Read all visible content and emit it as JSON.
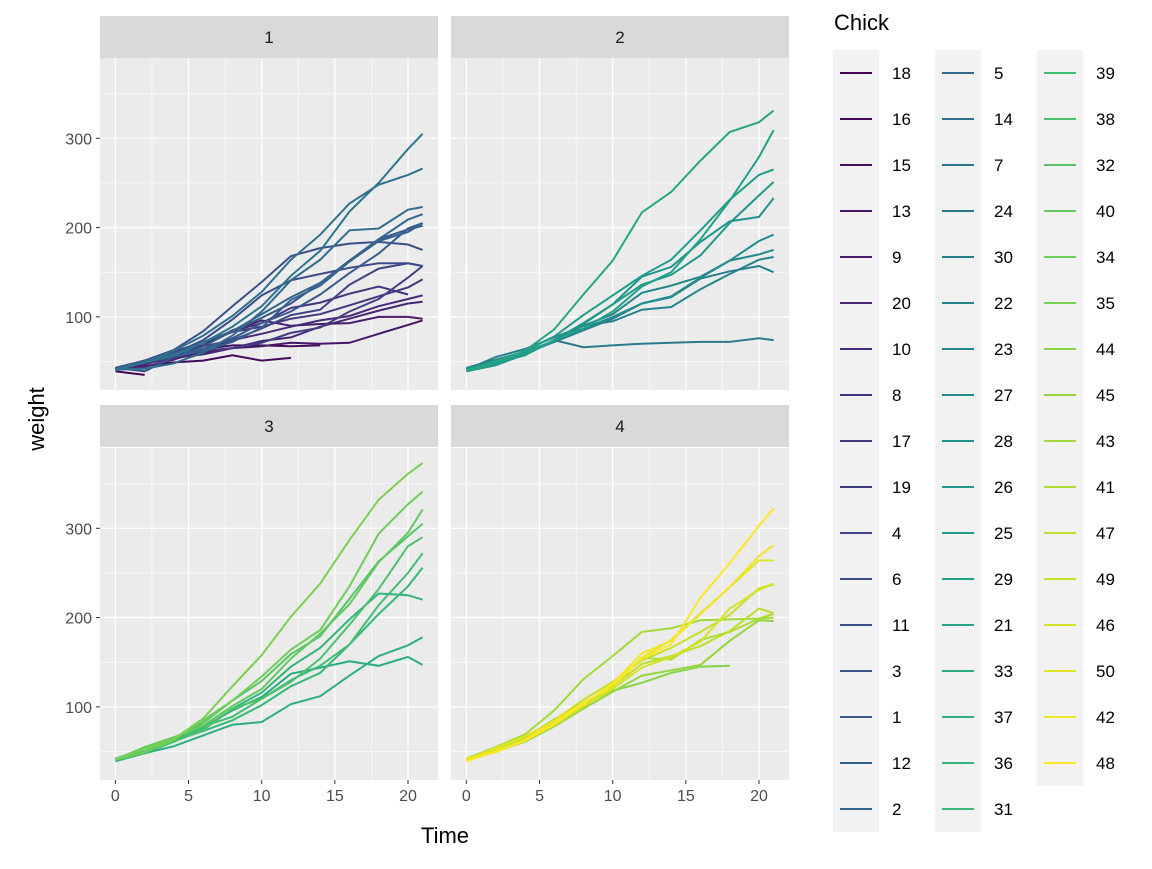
{
  "chart_data": {
    "type": "line",
    "facet_variable": "Diet",
    "facets": [
      "1",
      "2",
      "3",
      "4"
    ],
    "xlabel": "Time",
    "ylabel": "weight",
    "xlim": [
      -1.05,
      22.05
    ],
    "ylim": [
      18.1,
      389.9
    ],
    "x_ticks": [
      0,
      5,
      10,
      15,
      20
    ],
    "y_ticks": [
      100,
      200,
      300
    ],
    "grid": true,
    "legend": {
      "title": "Chick",
      "placement": "right",
      "columns": 3
    },
    "palette": "viridis",
    "times": [
      0,
      2,
      4,
      6,
      8,
      10,
      12,
      14,
      16,
      18,
      20,
      21
    ],
    "series": [
      {
        "name": "18",
        "facet": "1",
        "values": [
          39,
          35
        ]
      },
      {
        "name": "16",
        "facet": "1",
        "values": [
          41,
          45,
          49,
          51,
          57,
          51,
          54
        ]
      },
      {
        "name": "15",
        "facet": "1",
        "values": [
          41,
          49,
          56,
          64,
          68,
          68,
          67,
          68
        ]
      },
      {
        "name": "13",
        "facet": "1",
        "values": [
          41,
          48,
          53,
          60,
          65,
          67,
          71,
          70,
          71,
          81,
          91,
          96
        ]
      },
      {
        "name": "9",
        "facet": "1",
        "values": [
          42,
          51,
          59,
          68,
          85,
          96,
          90,
          92,
          93,
          100,
          100,
          98
        ]
      },
      {
        "name": "20",
        "facet": "1",
        "values": [
          41,
          47,
          54,
          58,
          65,
          73,
          77,
          89,
          98,
          107,
          115,
          117
        ]
      },
      {
        "name": "10",
        "facet": "1",
        "values": [
          41,
          44,
          52,
          63,
          74,
          81,
          89,
          96,
          101,
          112,
          120,
          124
        ]
      },
      {
        "name": "8",
        "facet": "1",
        "values": [
          42,
          50,
          61,
          71,
          84,
          93,
          110,
          116,
          126,
          134,
          125
        ]
      },
      {
        "name": "17",
        "facet": "1",
        "values": [
          42,
          51,
          61,
          72,
          83,
          89,
          98,
          103,
          113,
          123,
          133,
          142
        ]
      },
      {
        "name": "19",
        "facet": "1",
        "values": [
          43,
          48,
          55,
          62,
          65,
          71,
          82,
          88,
          106,
          120,
          144,
          157
        ]
      },
      {
        "name": "4",
        "facet": "1",
        "values": [
          42,
          49,
          56,
          67,
          74,
          87,
          102,
          108,
          136,
          154,
          160,
          157
        ]
      },
      {
        "name": "6",
        "facet": "1",
        "values": [
          41,
          49,
          59,
          74,
          97,
          124,
          141,
          148,
          155,
          160,
          160,
          157
        ]
      },
      {
        "name": "11",
        "facet": "1",
        "values": [
          43,
          51,
          63,
          84,
          112,
          139,
          168,
          177,
          182,
          184,
          181,
          175
        ]
      },
      {
        "name": "3",
        "facet": "1",
        "values": [
          43,
          39,
          55,
          67,
          84,
          99,
          115,
          138,
          163,
          187,
          198,
          202
        ]
      },
      {
        "name": "1",
        "facet": "1",
        "values": [
          42,
          51,
          59,
          64,
          76,
          93,
          106,
          125,
          149,
          171,
          199,
          205
        ]
      },
      {
        "name": "12",
        "facet": "1",
        "values": [
          41,
          49,
          56,
          62,
          72,
          88,
          119,
          135,
          162,
          185,
          195,
          205
        ]
      },
      {
        "name": "2",
        "facet": "1",
        "values": [
          40,
          49,
          58,
          72,
          84,
          103,
          122,
          138,
          162,
          187,
          209,
          215
        ]
      },
      {
        "name": "5",
        "facet": "1",
        "values": [
          41,
          42,
          48,
          60,
          79,
          106,
          141,
          164,
          197,
          199,
          220,
          223
        ]
      },
      {
        "name": "14",
        "facet": "1",
        "values": [
          41,
          49,
          62,
          79,
          101,
          128,
          164,
          192,
          227,
          248,
          259,
          266
        ]
      },
      {
        "name": "7",
        "facet": "1",
        "values": [
          41,
          49,
          57,
          71,
          89,
          112,
          146,
          174,
          218,
          250,
          288,
          305
        ]
      },
      {
        "name": "24",
        "facet": "2",
        "values": [
          42,
          52,
          58,
          74,
          66,
          68,
          70,
          71,
          72,
          72,
          76,
          74
        ]
      },
      {
        "name": "30",
        "facet": "2",
        "values": [
          42,
          48,
          59,
          72,
          85,
          98,
          115,
          122,
          143,
          151,
          157,
          150
        ]
      },
      {
        "name": "22",
        "facet": "2",
        "values": [
          41,
          55,
          64,
          77,
          90,
          95,
          108,
          111,
          131,
          148,
          164,
          167
        ]
      },
      {
        "name": "23",
        "facet": "2",
        "values": [
          43,
          52,
          61,
          73,
          90,
          103,
          127,
          135,
          145,
          163,
          170,
          175
        ]
      },
      {
        "name": "27",
        "facet": "2",
        "values": [
          39,
          46,
          58,
          73,
          87,
          100,
          115,
          123,
          144,
          163,
          185,
          192
        ]
      },
      {
        "name": "28",
        "facet": "2",
        "values": [
          39,
          46,
          58,
          73,
          92,
          114,
          145,
          156,
          184,
          207,
          212,
          233
        ]
      },
      {
        "name": "26",
        "facet": "2",
        "values": [
          42,
          48,
          57,
          74,
          93,
          114,
          136,
          147,
          169,
          205,
          236,
          251
        ]
      },
      {
        "name": "25",
        "facet": "2",
        "values": [
          40,
          49,
          62,
          78,
          102,
          124,
          146,
          164,
          197,
          231,
          259,
          265
        ]
      },
      {
        "name": "29",
        "facet": "2",
        "values": [
          39,
          48,
          59,
          74,
          87,
          106,
          134,
          150,
          187,
          230,
          279,
          309
        ]
      },
      {
        "name": "21",
        "facet": "2",
        "values": [
          40,
          50,
          62,
          86,
          125,
          163,
          217,
          240,
          275,
          307,
          318,
          331
        ]
      },
      {
        "name": "33",
        "facet": "3",
        "values": [
          39,
          50,
          63,
          77,
          96,
          111,
          137,
          144,
          151,
          146,
          156,
          147
        ]
      },
      {
        "name": "37",
        "facet": "3",
        "values": [
          41,
          48,
          56,
          68,
          80,
          83,
          103,
          112,
          135,
          157,
          169,
          178
        ]
      },
      {
        "name": "36",
        "facet": "3",
        "values": [
          39,
          48,
          61,
          76,
          98,
          116,
          145,
          166,
          198,
          227,
          225,
          220
        ]
      },
      {
        "name": "31",
        "facet": "3",
        "values": [
          42,
          53,
          62,
          73,
          85,
          102,
          123,
          138,
          170,
          204,
          235,
          256
        ]
      },
      {
        "name": "39",
        "facet": "3",
        "values": [
          42,
          50,
          61,
          78,
          89,
          109,
          130,
          146,
          170,
          214,
          250,
          272
        ]
      },
      {
        "name": "38",
        "facet": "3",
        "values": [
          41,
          49,
          61,
          74,
          98,
          109,
          128,
          154,
          192,
          232,
          280,
          290
        ]
      },
      {
        "name": "32",
        "facet": "3",
        "values": [
          41,
          49,
          65,
          82,
          107,
          129,
          159,
          179,
          221,
          263,
          291,
          305
        ]
      },
      {
        "name": "40",
        "facet": "3",
        "values": [
          41,
          55,
          66,
          79,
          101,
          120,
          154,
          182,
          215,
          262,
          295,
          321
        ]
      },
      {
        "name": "34",
        "facet": "3",
        "values": [
          41,
          49,
          63,
          85,
          107,
          134,
          164,
          186,
          235,
          294,
          327,
          341
        ]
      },
      {
        "name": "35",
        "facet": "3",
        "values": [
          41,
          53,
          64,
          87,
          123,
          158,
          201,
          238,
          287,
          332,
          361,
          373
        ]
      },
      {
        "name": "44",
        "facet": "4",
        "values": [
          42,
          51,
          65,
          86,
          103,
          118,
          127,
          138,
          145,
          146
        ]
      },
      {
        "name": "45",
        "facet": "4",
        "values": [
          41,
          50,
          61,
          78,
          98,
          117,
          135,
          141,
          147,
          174,
          197,
          196
        ]
      },
      {
        "name": "43",
        "facet": "4",
        "values": [
          42,
          55,
          69,
          96,
          131,
          157,
          184,
          188,
          197,
          198,
          199,
          200
        ]
      },
      {
        "name": "41",
        "facet": "4",
        "values": [
          42,
          51,
          66,
          85,
          103,
          124,
          155,
          153,
          175,
          184,
          199,
          204
        ]
      },
      {
        "name": "47",
        "facet": "4",
        "values": [
          41,
          53,
          66,
          79,
          100,
          123,
          148,
          157,
          168,
          185,
          210,
          205
        ]
      },
      {
        "name": "49",
        "facet": "4",
        "values": [
          40,
          53,
          64,
          85,
          108,
          128,
          152,
          166,
          184,
          203,
          233,
          237
        ]
      },
      {
        "name": "46",
        "facet": "4",
        "values": [
          40,
          52,
          62,
          82,
          101,
          120,
          144,
          156,
          173,
          210,
          231,
          238
        ]
      },
      {
        "name": "50",
        "facet": "4",
        "values": [
          41,
          54,
          67,
          84,
          105,
          122,
          155,
          175,
          205,
          234,
          264,
          264
        ]
      },
      {
        "name": "42",
        "facet": "4",
        "values": [
          42,
          49,
          63,
          84,
          103,
          126,
          160,
          174,
          204,
          234,
          269,
          281
        ]
      },
      {
        "name": "48",
        "facet": "4",
        "values": [
          39,
          50,
          62,
          80,
          104,
          125,
          154,
          170,
          222,
          261,
          303,
          322
        ]
      }
    ]
  }
}
